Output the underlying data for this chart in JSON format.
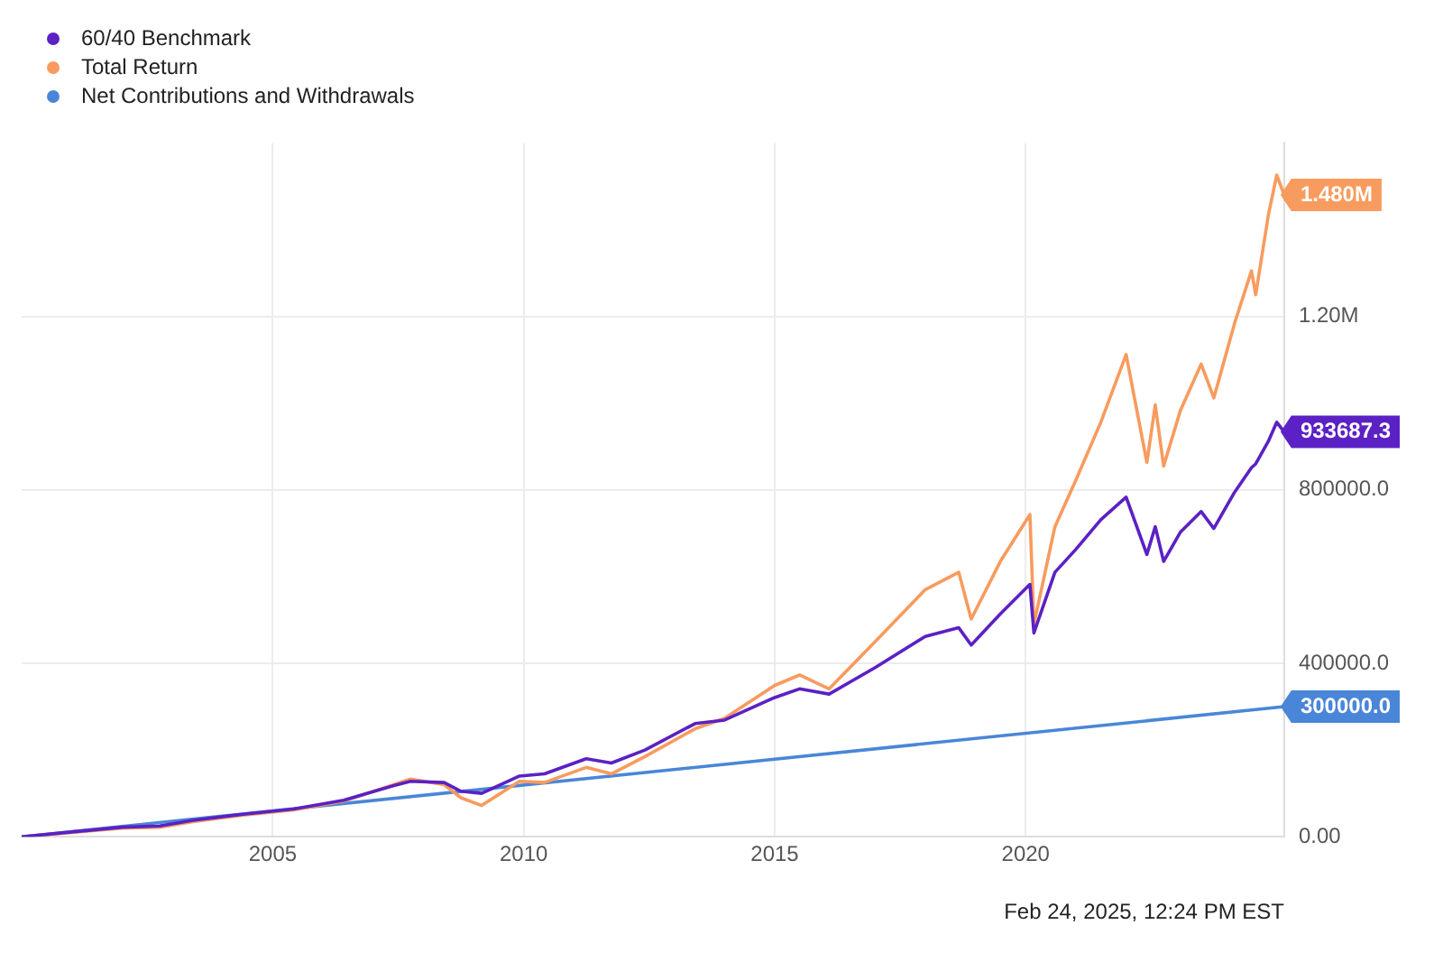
{
  "chart_data": {
    "type": "line",
    "legend": "top left",
    "grid": true,
    "marker": "none",
    "line_style": "solid",
    "x": [
      "2000-01",
      "2001-01",
      "2002-01",
      "2002-10",
      "2003-06",
      "2004-06",
      "2005-06",
      "2006-06",
      "2007-06",
      "2007-10",
      "2008-06",
      "2008-10",
      "2009-03",
      "2009-12",
      "2010-06",
      "2011-04",
      "2011-10",
      "2012-06",
      "2013-06",
      "2014-01",
      "2015-01",
      "2015-07",
      "2016-02",
      "2017-01",
      "2018-01",
      "2018-09",
      "2018-12",
      "2019-07",
      "2020-02",
      "2020-03",
      "2020-08",
      "2021-01",
      "2021-07",
      "2022-01",
      "2022-06",
      "2022-08",
      "2022-10",
      "2023-02",
      "2023-07",
      "2023-10",
      "2024-03",
      "2024-07",
      "2024-08",
      "2024-11",
      "2025-01",
      "2025-02-24"
    ],
    "xlim": [
      "2000-01",
      "2025-02-24"
    ],
    "xticks": [
      "2005",
      "2010",
      "2015",
      "2020"
    ],
    "ylim": [
      0,
      1600000
    ],
    "yticks": [
      {
        "value": 0,
        "label": "0.00"
      },
      {
        "value": 400000,
        "label": "400000.0"
      },
      {
        "value": 800000,
        "label": "800000.0"
      },
      {
        "value": 1200000,
        "label": "1.20M"
      }
    ],
    "series": [
      {
        "name": "60/40 Benchmark",
        "color": "#5b21c4",
        "values": [
          0,
          11000,
          22000,
          25000,
          38000,
          52000,
          64000,
          84000,
          118000,
          128000,
          125000,
          105000,
          100000,
          140000,
          145000,
          180000,
          170000,
          200000,
          261000,
          269000,
          321000,
          341000,
          329000,
          390000,
          462000,
          482000,
          442000,
          514000,
          582000,
          470000,
          610000,
          663000,
          731000,
          783000,
          651000,
          715000,
          635000,
          703000,
          750000,
          711000,
          795000,
          851000,
          860000,
          912000,
          956000,
          933687.3
        ],
        "value_labels": [
          null,
          null,
          null,
          null,
          null,
          null,
          null,
          null,
          null,
          null,
          null,
          null,
          null,
          null,
          null,
          null,
          null,
          null,
          null,
          null,
          null,
          null,
          null,
          null,
          null,
          null,
          null,
          null,
          null,
          null,
          null,
          null,
          null,
          null,
          null,
          null,
          null,
          null,
          null,
          null,
          null,
          null,
          null,
          null,
          null,
          "933687.3"
        ]
      },
      {
        "name": "Total Return",
        "color": "#f89b5e",
        "values": [
          0,
          10000,
          20000,
          22000,
          35000,
          50000,
          62000,
          82000,
          120000,
          133000,
          120000,
          90000,
          72000,
          128000,
          125000,
          160000,
          145000,
          185000,
          249000,
          273000,
          349000,
          373000,
          341000,
          450000,
          570000,
          610000,
          502000,
          635000,
          743000,
          490000,
          715000,
          823000,
          956000,
          1112000,
          863000,
          996000,
          855000,
          984000,
          1090000,
          1012000,
          1185000,
          1305000,
          1250000,
          1434000,
          1526000,
          1480000
        ],
        "value_labels": [
          null,
          null,
          null,
          null,
          null,
          null,
          null,
          null,
          null,
          null,
          null,
          null,
          null,
          null,
          null,
          null,
          null,
          null,
          null,
          null,
          null,
          null,
          null,
          null,
          null,
          null,
          null,
          null,
          null,
          null,
          null,
          null,
          null,
          null,
          null,
          null,
          null,
          null,
          null,
          null,
          null,
          null,
          null,
          null,
          null,
          "1.480M"
        ]
      },
      {
        "name": "Net Contributions and Withdrawals",
        "color": "#4a86d8",
        "x": [
          "2000-01",
          "2025-02-24"
        ],
        "values": [
          0,
          300000
        ],
        "value_labels": [
          null,
          "300000.0"
        ]
      }
    ],
    "annotations": [
      "Feb 24, 2025, 12:24 PM EST"
    ]
  }
}
